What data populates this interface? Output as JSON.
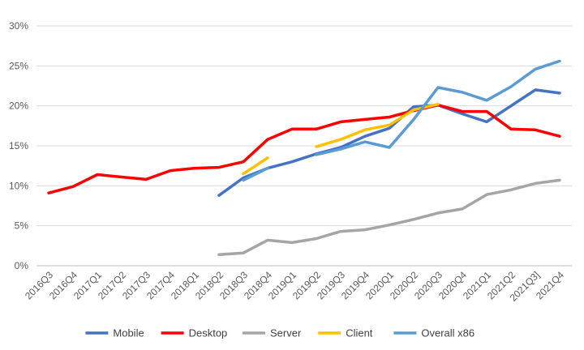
{
  "chart_data": {
    "type": "line",
    "title": "",
    "xlabel": "",
    "ylabel": "",
    "categories": [
      "2016Q3",
      "2016Q4",
      "2017Q1",
      "2017Q2",
      "2017Q3",
      "2017Q4",
      "2018Q1",
      "2018Q2",
      "2018Q3",
      "2018Q4",
      "2019Q1",
      "2019Q2",
      "2019Q3",
      "2019Q4",
      "2020Q1",
      "2020Q2",
      "2020Q3",
      "2020Q4",
      "2021Q1",
      "2021Q2",
      "2021Q3]",
      "2021Q4"
    ],
    "ylim": [
      0,
      30
    ],
    "yticks": [
      0,
      5,
      10,
      15,
      20,
      25,
      30
    ],
    "ytick_labels": [
      "0%",
      "5%",
      "10%",
      "15%",
      "20%",
      "25%",
      "30%"
    ],
    "grid": true,
    "legend_position": "bottom",
    "series": [
      {
        "name": "Mobile",
        "color": "#4472C4",
        "values": [
          null,
          null,
          null,
          null,
          null,
          null,
          null,
          8.8,
          11.0,
          12.2,
          13.0,
          14.0,
          14.8,
          16.2,
          17.2,
          19.9,
          20.1,
          19.0,
          18.0,
          20.0,
          22.0,
          21.6
        ]
      },
      {
        "name": "Desktop",
        "color": "#FF0000",
        "values": [
          9.1,
          9.9,
          11.4,
          11.1,
          10.8,
          11.9,
          12.2,
          12.3,
          13.0,
          15.8,
          17.1,
          17.1,
          18.0,
          18.3,
          18.6,
          19.4,
          20.1,
          19.3,
          19.3,
          17.1,
          17.0,
          16.2
        ]
      },
      {
        "name": "Server",
        "color": "#A5A5A5",
        "values": [
          null,
          null,
          null,
          null,
          null,
          null,
          null,
          1.4,
          1.6,
          3.2,
          2.9,
          3.4,
          4.3,
          4.5,
          5.1,
          5.8,
          6.6,
          7.1,
          8.9,
          9.5,
          10.3,
          10.7
        ]
      },
      {
        "name": "Client",
        "color": "#FFC000",
        "values": [
          null,
          null,
          null,
          null,
          null,
          null,
          null,
          null,
          11.5,
          13.5,
          null,
          14.9,
          15.8,
          17.0,
          17.6,
          19.5,
          20.2,
          null,
          null,
          null,
          null,
          null
        ]
      },
      {
        "name": "Overall x86",
        "color": "#5B9BD5",
        "values": [
          null,
          null,
          null,
          null,
          null,
          null,
          null,
          null,
          10.7,
          12.2,
          null,
          13.9,
          14.6,
          15.5,
          14.8,
          18.3,
          22.3,
          21.7,
          20.7,
          22.4,
          24.6,
          25.6
        ]
      }
    ]
  }
}
